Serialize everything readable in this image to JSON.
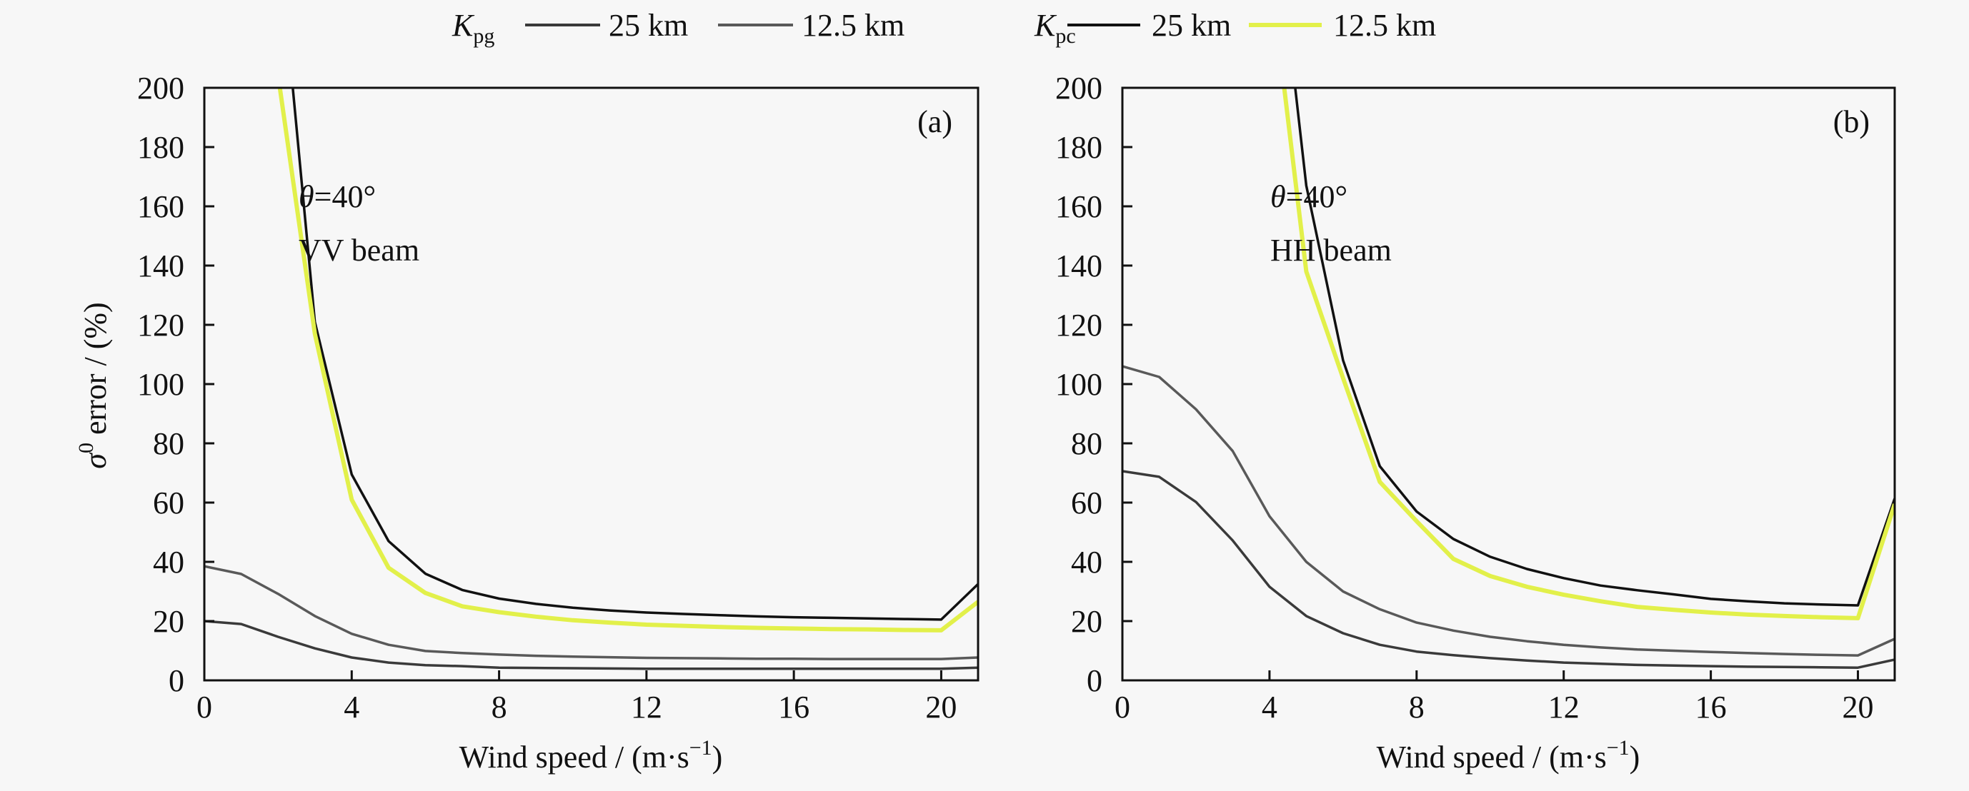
{
  "chart_data": [
    {
      "type": "line",
      "panel_label": "(a)",
      "annotation_angle_symbol": "θ",
      "annotation_angle_value": "=40°",
      "annotation_beam": "VV beam",
      "xlabel": "Wind speed / (m·s",
      "xlabel_sup": "−1",
      "xlabel_close": ")",
      "ylabel_symbol": "σ",
      "ylabel_sup": "0",
      "ylabel_text": " error / (%)",
      "xlim": [
        0,
        21
      ],
      "ylim": [
        0,
        200
      ],
      "xticks": [
        "0",
        "4",
        "8",
        "12",
        "16",
        "20"
      ],
      "xtick_values": [
        0,
        4,
        8,
        12,
        16,
        20
      ],
      "yticks": [
        "0",
        "20",
        "40",
        "60",
        "80",
        "100",
        "120",
        "140",
        "160",
        "180",
        "200"
      ],
      "ytick_values": [
        0,
        20,
        40,
        60,
        80,
        100,
        120,
        140,
        160,
        180,
        200
      ],
      "grid": false,
      "legend": {
        "placement": "top",
        "symbol_main": "K",
        "symbol_sub": "pg",
        "entries": [
          {
            "label": "25 km",
            "color": "#3a3a3a"
          },
          {
            "label": "12.5 km",
            "color": "#595959"
          }
        ]
      },
      "series": [
        {
          "name": "Kpg 25 km",
          "color": "#3a3a3a",
          "points": [
            [
              0,
              20
            ],
            [
              1,
              19
            ],
            [
              2,
              14.7
            ],
            [
              3,
              10.8
            ],
            [
              4,
              7.7
            ],
            [
              5,
              6
            ],
            [
              6,
              5.1
            ],
            [
              7,
              4.8
            ],
            [
              8,
              4.3
            ],
            [
              9,
              4.2
            ],
            [
              10,
              4.1
            ],
            [
              11,
              4
            ],
            [
              12,
              3.9
            ],
            [
              13,
              3.9
            ],
            [
              14,
              3.9
            ],
            [
              15,
              3.9
            ],
            [
              16,
              3.9
            ],
            [
              17,
              3.9
            ],
            [
              18,
              3.9
            ],
            [
              19,
              3.9
            ],
            [
              20,
              3.9
            ],
            [
              21,
              4.3
            ]
          ]
        },
        {
          "name": "Kpg 12.5 km",
          "color": "#595959",
          "points": [
            [
              0,
              38.5
            ],
            [
              1,
              35.9
            ],
            [
              2,
              29.2
            ],
            [
              3,
              21.7
            ],
            [
              4,
              15.7
            ],
            [
              5,
              12
            ],
            [
              6,
              9.9
            ],
            [
              7,
              9.2
            ],
            [
              8,
              8.7
            ],
            [
              9,
              8.3
            ],
            [
              10,
              8
            ],
            [
              11,
              7.8
            ],
            [
              12,
              7.6
            ],
            [
              13,
              7.5
            ],
            [
              14,
              7.4
            ],
            [
              15,
              7.3
            ],
            [
              16,
              7.3
            ],
            [
              17,
              7.2
            ],
            [
              18,
              7.2
            ],
            [
              19,
              7.2
            ],
            [
              20,
              7.2
            ],
            [
              21,
              7.7
            ]
          ]
        },
        {
          "name": "Kpc 25 km",
          "color": "#111111",
          "points": [
            [
              2.4,
              200
            ],
            [
              3,
              121
            ],
            [
              4,
              69.5
            ],
            [
              5,
              47
            ],
            [
              6,
              36
            ],
            [
              7,
              30.5
            ],
            [
              8,
              27.6
            ],
            [
              9,
              25.8
            ],
            [
              10,
              24.5
            ],
            [
              11,
              23.6
            ],
            [
              12,
              22.9
            ],
            [
              13,
              22.4
            ],
            [
              14,
              22
            ],
            [
              15,
              21.6
            ],
            [
              16,
              21.3
            ],
            [
              17,
              21.1
            ],
            [
              18,
              20.9
            ],
            [
              19,
              20.7
            ],
            [
              20,
              20.5
            ],
            [
              21,
              32.5
            ]
          ]
        },
        {
          "name": "Kpc 12.5 km",
          "color": "#e2f04a",
          "points": [
            [
              2.05,
              200
            ],
            [
              3,
              117
            ],
            [
              4,
              61
            ],
            [
              5,
              38
            ],
            [
              6,
              29.5
            ],
            [
              7,
              25
            ],
            [
              8,
              23
            ],
            [
              9,
              21.5
            ],
            [
              10,
              20.3
            ],
            [
              11,
              19.5
            ],
            [
              12,
              18.8
            ],
            [
              13,
              18.4
            ],
            [
              14,
              18
            ],
            [
              15,
              17.7
            ],
            [
              16,
              17.5
            ],
            [
              17,
              17.3
            ],
            [
              18,
              17.2
            ],
            [
              19,
              17
            ],
            [
              20,
              16.9
            ],
            [
              21,
              26.5
            ]
          ]
        }
      ]
    },
    {
      "type": "line",
      "panel_label": "(b)",
      "annotation_angle_symbol": "θ",
      "annotation_angle_value": "=40°",
      "annotation_beam": "HH beam",
      "xlabel": "Wind speed / (m·s",
      "xlabel_sup": "−1",
      "xlabel_close": ")",
      "xlim": [
        0,
        21
      ],
      "ylim": [
        0,
        200
      ],
      "xticks": [
        "0",
        "4",
        "8",
        "12",
        "16",
        "20"
      ],
      "xtick_values": [
        0,
        4,
        8,
        12,
        16,
        20
      ],
      "yticks": [
        "0",
        "20",
        "40",
        "60",
        "80",
        "100",
        "120",
        "140",
        "160",
        "180",
        "200"
      ],
      "ytick_values": [
        0,
        20,
        40,
        60,
        80,
        100,
        120,
        140,
        160,
        180,
        200
      ],
      "grid": false,
      "legend": {
        "placement": "top",
        "symbol_main": "K",
        "symbol_sub": "pc",
        "entries": [
          {
            "label": "25 km",
            "color": "#111111"
          },
          {
            "label": "12.5 km",
            "color": "#e2f04a"
          }
        ]
      },
      "series": [
        {
          "name": "Kpg 25 km",
          "color": "#3a3a3a",
          "points": [
            [
              0,
              70.6
            ],
            [
              1,
              68.7
            ],
            [
              2,
              60.2
            ],
            [
              3,
              47.2
            ],
            [
              4,
              31.6
            ],
            [
              5,
              21.7
            ],
            [
              6,
              15.9
            ],
            [
              7,
              12
            ],
            [
              8,
              9.7
            ],
            [
              9,
              8.5
            ],
            [
              10,
              7.5
            ],
            [
              11,
              6.7
            ],
            [
              12,
              6
            ],
            [
              13,
              5.6
            ],
            [
              14,
              5.2
            ],
            [
              15,
              5
            ],
            [
              16,
              4.8
            ],
            [
              17,
              4.6
            ],
            [
              18,
              4.5
            ],
            [
              19,
              4.4
            ],
            [
              20,
              4.3
            ],
            [
              21,
              7
            ]
          ]
        },
        {
          "name": "Kpg 12.5 km",
          "color": "#595959",
          "points": [
            [
              0,
              106
            ],
            [
              1,
              102.4
            ],
            [
              2,
              91.5
            ],
            [
              3,
              77.4
            ],
            [
              4,
              55.4
            ],
            [
              5,
              40
            ],
            [
              6,
              30
            ],
            [
              7,
              24
            ],
            [
              8,
              19.5
            ],
            [
              9,
              16.8
            ],
            [
              10,
              14.7
            ],
            [
              11,
              13.2
            ],
            [
              12,
              12
            ],
            [
              13,
              11.1
            ],
            [
              14,
              10.4
            ],
            [
              15,
              10
            ],
            [
              16,
              9.6
            ],
            [
              17,
              9.2
            ],
            [
              18,
              8.9
            ],
            [
              19,
              8.6
            ],
            [
              20,
              8.4
            ],
            [
              21,
              14
            ]
          ]
        },
        {
          "name": "Kpc 25 km",
          "color": "#111111",
          "points": [
            [
              4.7,
              200
            ],
            [
              5,
              167
            ],
            [
              6,
              108
            ],
            [
              7,
              72.3
            ],
            [
              8,
              57
            ],
            [
              9,
              47.7
            ],
            [
              10,
              41.7
            ],
            [
              11,
              37.6
            ],
            [
              12,
              34.5
            ],
            [
              13,
              32
            ],
            [
              14,
              30.4
            ],
            [
              15,
              29
            ],
            [
              16,
              27.5
            ],
            [
              17,
              26.7
            ],
            [
              18,
              26
            ],
            [
              19,
              25.6
            ],
            [
              20,
              25.3
            ],
            [
              21,
              61.4
            ]
          ]
        },
        {
          "name": "Kpc 12.5 km",
          "color": "#e2f04a",
          "points": [
            [
              4.4,
              200
            ],
            [
              5,
              138
            ],
            [
              6,
              102
            ],
            [
              7,
              67
            ],
            [
              8,
              53.7
            ],
            [
              9,
              41
            ],
            [
              10,
              35.2
            ],
            [
              11,
              31.6
            ],
            [
              12,
              28.9
            ],
            [
              13,
              26.7
            ],
            [
              14,
              24.8
            ],
            [
              15,
              23.8
            ],
            [
              16,
              22.9
            ],
            [
              17,
              22.2
            ],
            [
              18,
              21.7
            ],
            [
              19,
              21.3
            ],
            [
              20,
              21
            ],
            [
              21,
              59.5
            ]
          ]
        }
      ]
    }
  ]
}
